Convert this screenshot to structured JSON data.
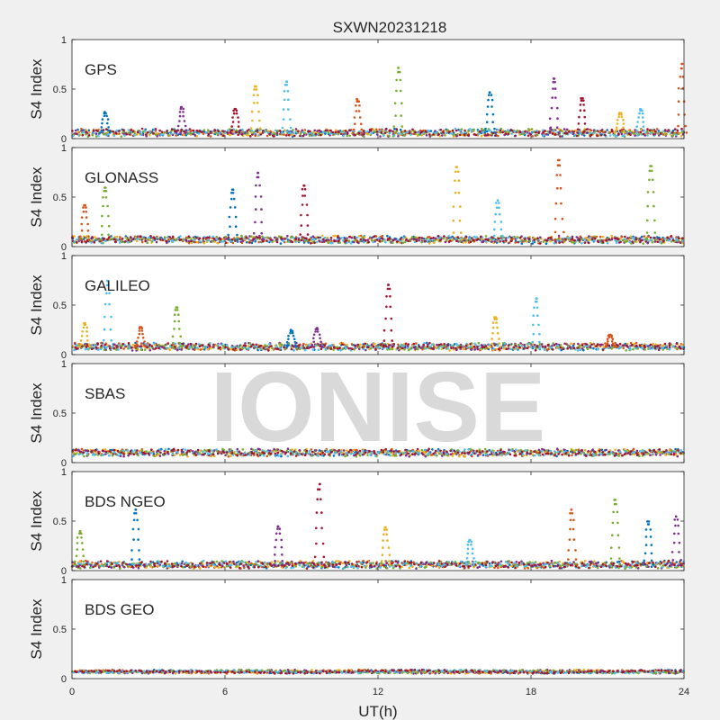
{
  "chart_data": {
    "type": "scatter",
    "title": "SXWN20231218",
    "xlabel": "UT(h)",
    "ylabel": "S4 Index",
    "xlim": [
      0,
      24
    ],
    "ylim": [
      0,
      1
    ],
    "x_ticks": [
      0,
      6,
      12,
      18,
      24
    ],
    "y_ticks": [
      0,
      0.5,
      1
    ],
    "x_tick_labels": [
      "0",
      "6",
      "12",
      "18",
      "24"
    ],
    "y_tick_labels": [
      "0",
      "0.5",
      "1"
    ],
    "grid": false,
    "legend": "none",
    "watermark": "IONISE",
    "series_colors": [
      "#0072BD",
      "#D95319",
      "#EDB120",
      "#7E2F8E",
      "#77AC30",
      "#4DBEEE",
      "#A2142F"
    ],
    "panels": [
      {
        "label": "GPS",
        "baseline": 0.06,
        "noise": 0.03,
        "peaks": [
          {
            "x": 1.3,
            "y": 0.27
          },
          {
            "x": 4.3,
            "y": 0.32
          },
          {
            "x": 6.4,
            "y": 0.3
          },
          {
            "x": 7.2,
            "y": 0.53
          },
          {
            "x": 8.4,
            "y": 0.58
          },
          {
            "x": 11.2,
            "y": 0.4
          },
          {
            "x": 12.8,
            "y": 0.72
          },
          {
            "x": 16.4,
            "y": 0.47
          },
          {
            "x": 18.9,
            "y": 0.61
          },
          {
            "x": 20.0,
            "y": 0.41
          },
          {
            "x": 21.5,
            "y": 0.26
          },
          {
            "x": 22.3,
            "y": 0.3
          },
          {
            "x": 23.9,
            "y": 0.76
          }
        ]
      },
      {
        "label": "GLONASS",
        "baseline": 0.07,
        "noise": 0.03,
        "peaks": [
          {
            "x": 0.5,
            "y": 0.42
          },
          {
            "x": 1.3,
            "y": 0.6
          },
          {
            "x": 6.3,
            "y": 0.58
          },
          {
            "x": 7.3,
            "y": 0.75
          },
          {
            "x": 9.1,
            "y": 0.62
          },
          {
            "x": 15.1,
            "y": 0.81
          },
          {
            "x": 16.7,
            "y": 0.47
          },
          {
            "x": 19.1,
            "y": 0.88
          },
          {
            "x": 22.7,
            "y": 0.82
          }
        ]
      },
      {
        "label": "GALILEO",
        "baseline": 0.08,
        "noise": 0.03,
        "peaks": [
          {
            "x": 0.5,
            "y": 0.32
          },
          {
            "x": 1.4,
            "y": 0.75
          },
          {
            "x": 2.7,
            "y": 0.28
          },
          {
            "x": 4.1,
            "y": 0.48
          },
          {
            "x": 8.6,
            "y": 0.25
          },
          {
            "x": 9.6,
            "y": 0.27
          },
          {
            "x": 12.4,
            "y": 0.71
          },
          {
            "x": 16.6,
            "y": 0.38
          },
          {
            "x": 18.2,
            "y": 0.57
          },
          {
            "x": 21.1,
            "y": 0.2
          }
        ]
      },
      {
        "label": "SBAS",
        "baseline": 0.1,
        "noise": 0.03,
        "peaks": []
      },
      {
        "label": "BDS NGEO",
        "baseline": 0.06,
        "noise": 0.03,
        "peaks": [
          {
            "x": 0.3,
            "y": 0.4
          },
          {
            "x": 2.5,
            "y": 0.62
          },
          {
            "x": 8.1,
            "y": 0.45
          },
          {
            "x": 9.7,
            "y": 0.88
          },
          {
            "x": 12.3,
            "y": 0.44
          },
          {
            "x": 15.6,
            "y": 0.31
          },
          {
            "x": 19.6,
            "y": 0.62
          },
          {
            "x": 21.3,
            "y": 0.72
          },
          {
            "x": 22.6,
            "y": 0.5
          },
          {
            "x": 23.7,
            "y": 0.55
          }
        ]
      },
      {
        "label": "BDS GEO",
        "baseline": 0.07,
        "noise": 0.01,
        "peaks": []
      }
    ]
  }
}
